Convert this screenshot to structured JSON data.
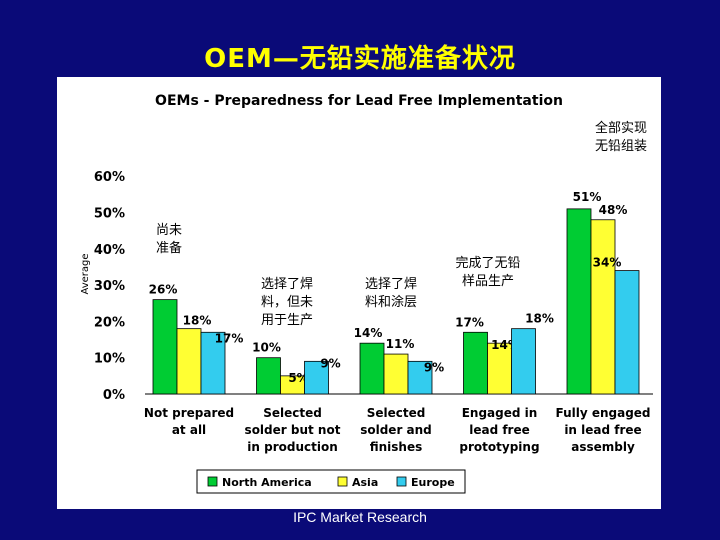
{
  "slide": {
    "title": "OEM—无铅实施准备状况",
    "footer": "IPC Market Research"
  },
  "chart_data": {
    "type": "bar",
    "title": "OEMs - Preparedness for Lead Free Implementation",
    "ylabel": "Average",
    "ylim": [
      0,
      60
    ],
    "yticks": [
      "0%",
      "10%",
      "20%",
      "30%",
      "40%",
      "50%",
      "60%"
    ],
    "categories": [
      [
        "Not prepared",
        "at all"
      ],
      [
        "Selected",
        "solder but not",
        "in production"
      ],
      [
        "Selected",
        "solder and",
        "finishes"
      ],
      [
        "Engaged in",
        "lead free",
        "prototyping"
      ],
      [
        "Fully engaged",
        "in lead free",
        "assembly"
      ]
    ],
    "series": [
      {
        "name": "North America",
        "color": "#00cc33",
        "values": [
          26,
          10,
          14,
          17,
          51
        ],
        "labels": [
          "26%",
          "10%",
          "14%",
          "17%",
          "51%"
        ]
      },
      {
        "name": "Asia",
        "color": "#ffff33",
        "values": [
          18,
          5,
          11,
          14,
          48
        ],
        "labels": [
          "18%",
          "5%",
          "11%",
          "14%",
          "48%"
        ]
      },
      {
        "name": "Europe",
        "color": "#33ccee",
        "values": [
          17,
          9,
          9,
          18,
          34
        ],
        "labels": [
          "17%",
          "9%",
          "9%",
          "18%",
          "34%"
        ]
      }
    ],
    "annotations": [
      {
        "lines": [
          "尚未",
          "准备"
        ],
        "near": "Not prepared at all"
      },
      {
        "lines": [
          "选择了焊",
          "料，但未",
          "用于生产"
        ],
        "near": "Selected solder but not in production"
      },
      {
        "lines": [
          "选择了焊",
          "料和涂层"
        ],
        "near": "Selected solder and finishes"
      },
      {
        "lines": [
          "完成了无铅",
          "样品生产"
        ],
        "near": "Engaged in lead free prototyping"
      },
      {
        "lines": [
          "全部实现",
          "无铅组装"
        ],
        "near": "Fully engaged in lead free assembly"
      }
    ],
    "legend": "bottom",
    "grid": false
  }
}
